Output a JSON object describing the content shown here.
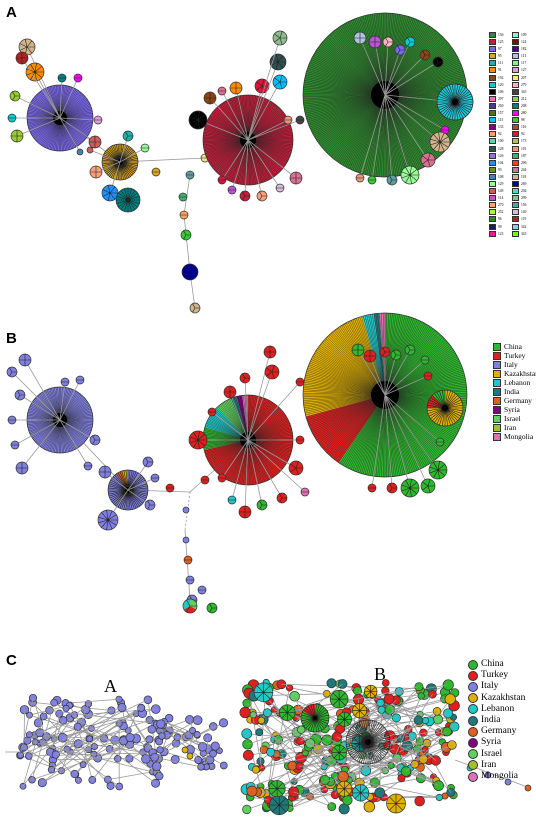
{
  "panels": {
    "a_letter": "A",
    "b_letter": "B",
    "c_letter": "C",
    "c_sub_a": "A",
    "c_sub_b": "B"
  },
  "legend_a": [
    {
      "label": "136",
      "color": "#2e8b2e"
    },
    {
      "label": "109",
      "color": "#7fffd4"
    },
    {
      "label": "125",
      "color": "#c41e3a"
    },
    {
      "label": "124",
      "color": "#8b0000"
    },
    {
      "label": "97",
      "color": "#7b68ee"
    },
    {
      "label": "182",
      "color": "#4b0082"
    },
    {
      "label": "95",
      "color": "#daa520"
    },
    {
      "label": "113",
      "color": "#b0c4de"
    },
    {
      "label": "111",
      "color": "#20b2aa"
    },
    {
      "label": "117",
      "color": "#90ee90"
    },
    {
      "label": "91",
      "color": "#ff8c00"
    },
    {
      "label": "127",
      "color": "#dda0dd"
    },
    {
      "label": "192",
      "color": "#8b4513"
    },
    {
      "label": "207",
      "color": "#f0e68c"
    },
    {
      "label": "120",
      "color": "#00ced1"
    },
    {
      "label": "279",
      "color": "#ffb6c1"
    },
    {
      "label": "106",
      "color": "#000000"
    },
    {
      "label": "343",
      "color": "#444444"
    },
    {
      "label": "297",
      "color": "#ff69b4"
    },
    {
      "label": "212",
      "color": "#9acd32"
    },
    {
      "label": "250",
      "color": "#483d8b"
    },
    {
      "label": "208",
      "color": "#008080"
    },
    {
      "label": "157",
      "color": "#556b2f"
    },
    {
      "label": "280",
      "color": "#ff00ff"
    },
    {
      "label": "115",
      "color": "#00bfff"
    },
    {
      "label": "98",
      "color": "#32cd32"
    },
    {
      "label": "133",
      "color": "#800080"
    },
    {
      "label": "116",
      "color": "#a0522d"
    },
    {
      "label": "92",
      "color": "#f4a460"
    },
    {
      "label": "92",
      "color": "#dc143c"
    },
    {
      "label": "100",
      "color": "#66cdaa"
    },
    {
      "label": "173",
      "color": "#bdb76b"
    },
    {
      "label": "128",
      "color": "#2f4f4f"
    },
    {
      "label": "101",
      "color": "#e9967a"
    },
    {
      "label": "126",
      "color": "#9370db"
    },
    {
      "label": "187",
      "color": "#3cb371"
    },
    {
      "label": "104",
      "color": "#1e90ff"
    },
    {
      "label": "296",
      "color": "#ff4500"
    },
    {
      "label": "93",
      "color": "#6b8e23"
    },
    {
      "label": "244",
      "color": "#db7093"
    },
    {
      "label": "108",
      "color": "#4682b4"
    },
    {
      "label": "118",
      "color": "#d2b48c"
    },
    {
      "label": "129",
      "color": "#98fb98"
    },
    {
      "label": "269",
      "color": "#00008b"
    },
    {
      "label": "149",
      "color": "#cd5c5c"
    },
    {
      "label": "204",
      "color": "#40e0d0"
    },
    {
      "label": "114",
      "color": "#ba55d3"
    },
    {
      "label": "299",
      "color": "#8fbc8f"
    },
    {
      "label": "270",
      "color": "#ffa07a"
    },
    {
      "label": "156",
      "color": "#5f9ea0"
    },
    {
      "label": "252",
      "color": "#adff2f"
    },
    {
      "label": "140",
      "color": "#d8bfd8"
    },
    {
      "label": "96",
      "color": "#228b22"
    },
    {
      "label": "119",
      "color": "#b22222"
    },
    {
      "label": "99",
      "color": "#191970"
    },
    {
      "label": "342",
      "color": "#87ceeb"
    },
    {
      "label": "123",
      "color": "#ff1493"
    },
    {
      "label": "343",
      "color": "#7cfc00"
    }
  ],
  "legend_b": [
    {
      "label": "China",
      "color": "#2db82d"
    },
    {
      "label": "Turkey",
      "color": "#e02020"
    },
    {
      "label": "Italy",
      "color": "#8080e0"
    },
    {
      "label": "Kazakhstan",
      "color": "#e0b000"
    },
    {
      "label": "Lebanon",
      "color": "#20c8c8"
    },
    {
      "label": "India",
      "color": "#207878"
    },
    {
      "label": "Germany",
      "color": "#e06020"
    },
    {
      "label": "Syria",
      "color": "#800080"
    },
    {
      "label": "Israel",
      "color": "#60d060"
    },
    {
      "label": "Iran",
      "color": "#a0c030"
    },
    {
      "label": "Mongolia",
      "color": "#e070b0"
    }
  ],
  "legend_c": [
    {
      "label": "China",
      "color": "#2db82d"
    },
    {
      "label": "Turkey",
      "color": "#e02020"
    },
    {
      "label": "Italy",
      "color": "#8080e0"
    },
    {
      "label": "Kazakhstan",
      "color": "#e0b000"
    },
    {
      "label": "Lebanon",
      "color": "#20c8c8"
    },
    {
      "label": "India",
      "color": "#207878"
    },
    {
      "label": "Germany",
      "color": "#e06020"
    },
    {
      "label": "Syria",
      "color": "#800080"
    },
    {
      "label": "Israel",
      "color": "#60d060"
    },
    {
      "label": "Iran",
      "color": "#a0c030"
    },
    {
      "label": "Mongolia",
      "color": "#e070b0"
    }
  ]
}
